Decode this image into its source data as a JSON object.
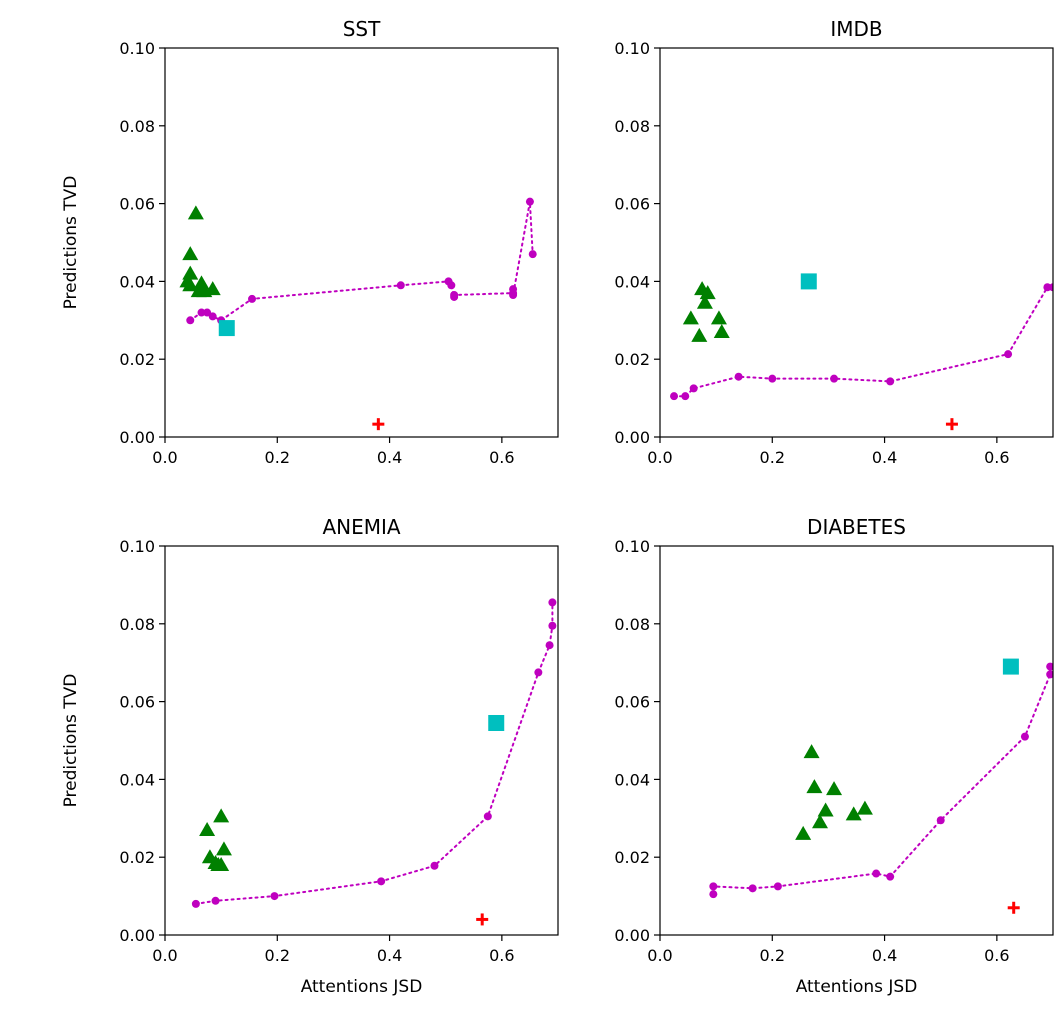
{
  "chart_data": [
    {
      "type": "scatter",
      "title": "SST",
      "xlabel": "",
      "ylabel": "Predictions TVD",
      "xlim": [
        0,
        0.7
      ],
      "ylim": [
        0,
        0.1
      ],
      "xticks": [
        "0.0",
        "0.2",
        "0.4",
        "0.6"
      ],
      "yticks": [
        "0.00",
        "0.02",
        "0.04",
        "0.06",
        "0.08",
        "0.10"
      ],
      "grid": false,
      "series": [
        {
          "marker": "dotted-line",
          "color": "#bf00bf",
          "points": [
            [
              0.045,
              0.03
            ],
            [
              0.065,
              0.032
            ],
            [
              0.075,
              0.032
            ],
            [
              0.085,
              0.031
            ],
            [
              0.1,
              0.03
            ],
            [
              0.155,
              0.0355
            ],
            [
              0.42,
              0.039
            ],
            [
              0.505,
              0.04
            ],
            [
              0.51,
              0.039
            ],
            [
              0.515,
              0.036
            ],
            [
              0.515,
              0.0365
            ],
            [
              0.62,
              0.037
            ],
            [
              0.62,
              0.038
            ],
            [
              0.62,
              0.0365
            ],
            [
              0.65,
              0.0605
            ],
            [
              0.655,
              0.047
            ]
          ]
        },
        {
          "marker": "triangle",
          "color": "#008000",
          "points": [
            [
              0.055,
              0.0575
            ],
            [
              0.045,
              0.047
            ],
            [
              0.045,
              0.042
            ],
            [
              0.04,
              0.04
            ],
            [
              0.045,
              0.039
            ],
            [
              0.065,
              0.0395
            ],
            [
              0.06,
              0.0375
            ],
            [
              0.07,
              0.0375
            ],
            [
              0.085,
              0.038
            ],
            [
              0.065,
              0.038
            ]
          ]
        },
        {
          "marker": "square",
          "color": "#00bfbf",
          "points": [
            [
              0.11,
              0.028
            ]
          ]
        },
        {
          "marker": "plus",
          "color": "#ff0000",
          "points": [
            [
              0.38,
              0.0033
            ]
          ]
        }
      ]
    },
    {
      "type": "scatter",
      "title": "IMDB",
      "xlabel": "",
      "ylabel": "",
      "xlim": [
        0,
        0.7
      ],
      "ylim": [
        0,
        0.1
      ],
      "xticks": [
        "0.0",
        "0.2",
        "0.4",
        "0.6"
      ],
      "yticks": [
        "0.00",
        "0.02",
        "0.04",
        "0.06",
        "0.08",
        "0.10"
      ],
      "grid": false,
      "series": [
        {
          "marker": "dotted-line",
          "color": "#bf00bf",
          "points": [
            [
              0.025,
              0.0105
            ],
            [
              0.045,
              0.0105
            ],
            [
              0.06,
              0.0125
            ],
            [
              0.14,
              0.0155
            ],
            [
              0.2,
              0.015
            ],
            [
              0.31,
              0.015
            ],
            [
              0.41,
              0.0143
            ],
            [
              0.62,
              0.0213
            ],
            [
              0.69,
              0.0385
            ],
            [
              0.7,
              0.0385
            ]
          ]
        },
        {
          "marker": "triangle",
          "color": "#008000",
          "points": [
            [
              0.075,
              0.038
            ],
            [
              0.085,
              0.037
            ],
            [
              0.08,
              0.0345
            ],
            [
              0.055,
              0.0305
            ],
            [
              0.105,
              0.0305
            ],
            [
              0.07,
              0.026
            ],
            [
              0.11,
              0.027
            ]
          ]
        },
        {
          "marker": "square",
          "color": "#00bfbf",
          "points": [
            [
              0.265,
              0.04
            ]
          ]
        },
        {
          "marker": "plus",
          "color": "#ff0000",
          "points": [
            [
              0.52,
              0.0033
            ]
          ]
        }
      ]
    },
    {
      "type": "scatter",
      "title": "ANEMIA",
      "xlabel": "Attentions JSD",
      "ylabel": "Predictions TVD",
      "xlim": [
        0,
        0.7
      ],
      "ylim": [
        0,
        0.1
      ],
      "xticks": [
        "0.0",
        "0.2",
        "0.4",
        "0.6"
      ],
      "yticks": [
        "0.00",
        "0.02",
        "0.04",
        "0.06",
        "0.08",
        "0.10"
      ],
      "grid": false,
      "series": [
        {
          "marker": "dotted-line",
          "color": "#bf00bf",
          "points": [
            [
              0.055,
              0.008
            ],
            [
              0.09,
              0.0088
            ],
            [
              0.195,
              0.01
            ],
            [
              0.385,
              0.0138
            ],
            [
              0.48,
              0.0178
            ],
            [
              0.575,
              0.0305
            ],
            [
              0.665,
              0.0675
            ],
            [
              0.685,
              0.0745
            ],
            [
              0.69,
              0.0795
            ],
            [
              0.69,
              0.0855
            ]
          ]
        },
        {
          "marker": "triangle",
          "color": "#008000",
          "points": [
            [
              0.1,
              0.0305
            ],
            [
              0.075,
              0.027
            ],
            [
              0.105,
              0.022
            ],
            [
              0.08,
              0.02
            ],
            [
              0.09,
              0.0185
            ],
            [
              0.095,
              0.018
            ],
            [
              0.1,
              0.018
            ]
          ]
        },
        {
          "marker": "square",
          "color": "#00bfbf",
          "points": [
            [
              0.59,
              0.0545
            ]
          ]
        },
        {
          "marker": "plus",
          "color": "#ff0000",
          "points": [
            [
              0.565,
              0.004
            ]
          ]
        }
      ]
    },
    {
      "type": "scatter",
      "title": "DIABETES",
      "xlabel": "Attentions JSD",
      "ylabel": "",
      "xlim": [
        0,
        0.7
      ],
      "ylim": [
        0,
        0.1
      ],
      "xticks": [
        "0.0",
        "0.2",
        "0.4",
        "0.6"
      ],
      "yticks": [
        "0.00",
        "0.02",
        "0.04",
        "0.06",
        "0.08",
        "0.10"
      ],
      "grid": false,
      "series": [
        {
          "marker": "dotted-line",
          "color": "#bf00bf",
          "points": [
            [
              0.095,
              0.0105
            ],
            [
              0.095,
              0.0125
            ],
            [
              0.165,
              0.012
            ],
            [
              0.21,
              0.0125
            ],
            [
              0.385,
              0.0158
            ],
            [
              0.41,
              0.015
            ],
            [
              0.5,
              0.0295
            ],
            [
              0.65,
              0.051
            ],
            [
              0.695,
              0.067
            ],
            [
              0.695,
              0.069
            ]
          ]
        },
        {
          "marker": "triangle",
          "color": "#008000",
          "points": [
            [
              0.27,
              0.047
            ],
            [
              0.275,
              0.038
            ],
            [
              0.31,
              0.0375
            ],
            [
              0.365,
              0.0325
            ],
            [
              0.295,
              0.032
            ],
            [
              0.345,
              0.031
            ],
            [
              0.285,
              0.029
            ],
            [
              0.255,
              0.026
            ]
          ]
        },
        {
          "marker": "square",
          "color": "#00bfbf",
          "points": [
            [
              0.625,
              0.069
            ]
          ]
        },
        {
          "marker": "plus",
          "color": "#ff0000",
          "points": [
            [
              0.63,
              0.007
            ]
          ]
        }
      ]
    }
  ]
}
